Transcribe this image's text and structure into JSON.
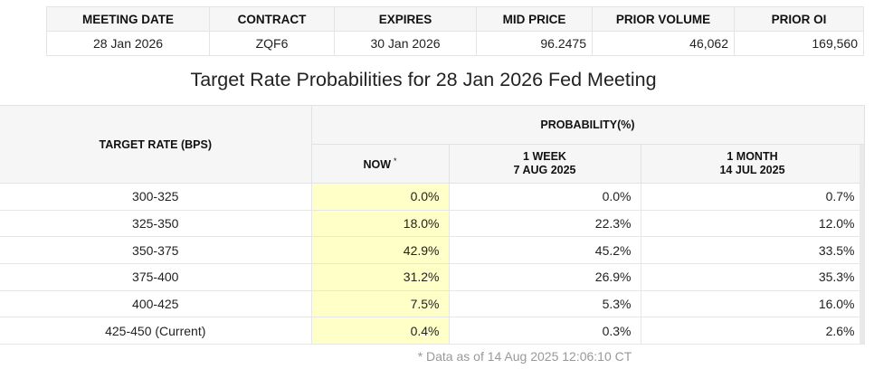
{
  "meeting": {
    "headers": [
      "MEETING DATE",
      "CONTRACT",
      "EXPIRES",
      "MID PRICE",
      "PRIOR VOLUME",
      "PRIOR OI"
    ],
    "row": {
      "meeting_date": "28 Jan 2026",
      "contract": "ZQF6",
      "expires": "30 Jan 2026",
      "mid_price": "96.2475",
      "prior_volume": "46,062",
      "prior_oi": "169,560"
    }
  },
  "section_title": "Target Rate Probabilities for 28 Jan 2026 Fed Meeting",
  "prob_table": {
    "target_rate_header": "TARGET RATE (BPS)",
    "probability_header": "PROBABILITY(%)",
    "now_header": "NOW",
    "now_marker": "*",
    "week_header_line1": "1 WEEK",
    "week_header_line2": "7 AUG 2025",
    "month_header_line1": "1 MONTH",
    "month_header_line2": "14 JUL 2025",
    "rows": [
      {
        "rate": "300-325",
        "now": "0.0%",
        "week": "0.0%",
        "month": "0.7%"
      },
      {
        "rate": "325-350",
        "now": "18.0%",
        "week": "22.3%",
        "month": "12.0%"
      },
      {
        "rate": "350-375",
        "now": "42.9%",
        "week": "45.2%",
        "month": "33.5%"
      },
      {
        "rate": "375-400",
        "now": "31.2%",
        "week": "26.9%",
        "month": "35.3%"
      },
      {
        "rate": "400-425",
        "now": "7.5%",
        "week": "5.3%",
        "month": "16.0%"
      },
      {
        "rate": "425-450 (Current)",
        "now": "0.4%",
        "week": "0.3%",
        "month": "2.6%"
      }
    ]
  },
  "footnote": "* Data as of 14 Aug 2025 12:06:10 CT",
  "colors": {
    "now_highlight": "#ffffc8",
    "header_bg": "#f6f6f6"
  }
}
